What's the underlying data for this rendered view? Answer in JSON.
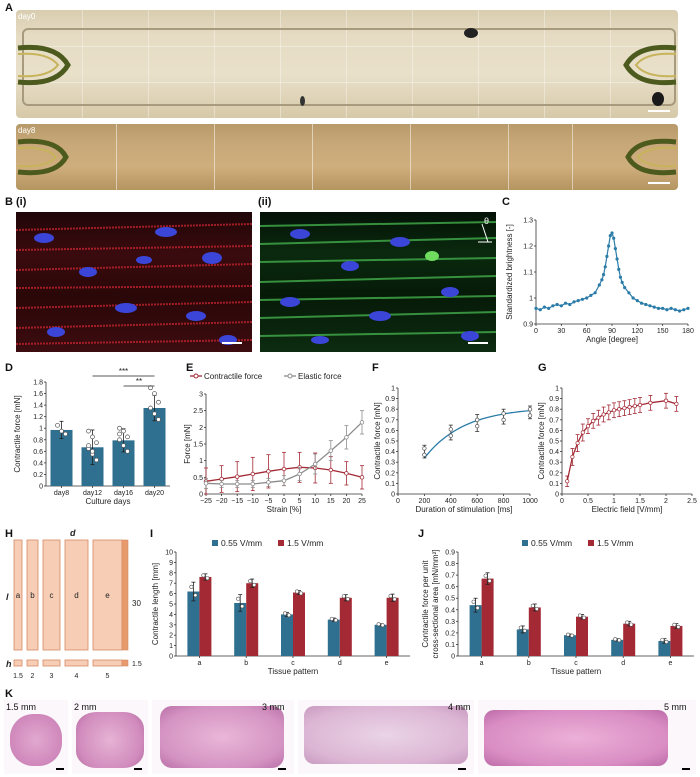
{
  "panel_labels": {
    "A": "A",
    "B": "B",
    "Bi": "(i)",
    "Bii": "(ii)",
    "C": "C",
    "D": "D",
    "E": "E",
    "F": "F",
    "G": "G",
    "H": "H",
    "I": "I",
    "J": "J",
    "K": "K"
  },
  "panel_a": {
    "day0": "day0",
    "day8": "day8"
  },
  "panel_b": {
    "theta": "θ"
  },
  "panel_h": {
    "d": "d",
    "l": "l",
    "h": "h",
    "l_value": "30",
    "h_value": "1.5",
    "widths": [
      "1.5",
      "2",
      "3",
      "4",
      "5"
    ],
    "patterns": [
      "a",
      "b",
      "c",
      "d",
      "e"
    ]
  },
  "panel_k": {
    "labels": [
      "1.5 mm",
      "2 mm",
      "3 mm",
      "4 mm",
      "5 mm"
    ]
  },
  "colors": {
    "teal": "#2f6f8f",
    "red": "#a32a35",
    "gray": "#8c8c8c",
    "blue_line": "#2b7ca8"
  },
  "chart_data": [
    {
      "id": "C",
      "type": "scatter",
      "title": "",
      "xlabel": "Angle [degree]",
      "ylabel": "Standardized brightness [-]",
      "xlim": [
        0,
        180
      ],
      "ylim": [
        0.9,
        1.3
      ],
      "xticks": [
        "0",
        "30",
        "60",
        "90",
        "120",
        "150",
        "180"
      ],
      "yticks": [
        "0.9",
        "1",
        "1.1",
        "1.2",
        "1.3"
      ],
      "x": [
        0,
        5,
        10,
        15,
        20,
        25,
        30,
        35,
        40,
        45,
        50,
        55,
        60,
        65,
        70,
        75,
        78,
        80,
        82,
        84,
        86,
        88,
        90,
        92,
        94,
        96,
        98,
        100,
        102,
        105,
        110,
        115,
        120,
        125,
        130,
        135,
        140,
        145,
        150,
        155,
        160,
        165,
        170,
        175,
        180
      ],
      "y": [
        0.96,
        0.955,
        0.965,
        0.96,
        0.97,
        0.975,
        0.97,
        0.98,
        0.975,
        0.985,
        0.99,
        0.995,
        1.0,
        1.01,
        1.02,
        1.05,
        1.07,
        1.09,
        1.12,
        1.16,
        1.2,
        1.24,
        1.25,
        1.23,
        1.19,
        1.15,
        1.11,
        1.08,
        1.06,
        1.04,
        1.02,
        1.0,
        0.99,
        0.98,
        0.975,
        0.97,
        0.965,
        0.96,
        0.96,
        0.955,
        0.96,
        0.955,
        0.95,
        0.955,
        0.96
      ]
    },
    {
      "id": "D",
      "type": "bar",
      "xlabel": "Culture days",
      "ylabel": "Contractile force [mN]",
      "ylim": [
        0,
        1.8
      ],
      "yticks": [
        "0",
        "0.2",
        "0.4",
        "0.6",
        "0.8",
        "1",
        "1.2",
        "1.4",
        "1.6",
        "1.8"
      ],
      "categories": [
        "day8",
        "day12",
        "day16",
        "day20"
      ],
      "values": [
        0.97,
        0.67,
        0.79,
        1.35
      ],
      "errors": [
        0.15,
        0.3,
        0.2,
        0.22
      ],
      "points": [
        [
          1.05,
          0.95,
          0.9
        ],
        [
          0.95,
          0.85,
          0.75,
          0.65,
          0.55,
          0.45,
          0.7,
          0.6
        ],
        [
          1.0,
          0.95,
          0.85,
          0.8,
          0.7,
          0.6,
          0.9
        ],
        [
          1.7,
          1.6,
          1.45,
          1.35,
          1.25,
          1.15
        ]
      ],
      "significance": [
        "***",
        "**"
      ]
    },
    {
      "id": "E",
      "type": "line",
      "xlabel": "Strain [%]",
      "ylabel": "Force [mN]",
      "xlim": [
        -25,
        25
      ],
      "ylim": [
        0,
        3
      ],
      "xticks": [
        "−25",
        "−20",
        "−15",
        "−10",
        "−5",
        "0",
        "5",
        "10",
        "15",
        "20",
        "25"
      ],
      "yticks": [
        "0",
        "0.5",
        "1",
        "1.5",
        "2",
        "2.5",
        "3"
      ],
      "x": [
        -25,
        -20,
        -15,
        -10,
        -5,
        0,
        5,
        10,
        15,
        20,
        25
      ],
      "series": [
        {
          "name": "Contractile force",
          "values": [
            0.38,
            0.45,
            0.52,
            0.6,
            0.68,
            0.75,
            0.8,
            0.78,
            0.72,
            0.62,
            0.5
          ],
          "errors": [
            0.4,
            0.4,
            0.45,
            0.5,
            0.5,
            0.5,
            0.45,
            0.45,
            0.4,
            0.35,
            0.35
          ]
        },
        {
          "name": "Elastic force",
          "values": [
            0.32,
            0.3,
            0.3,
            0.3,
            0.35,
            0.4,
            0.6,
            0.9,
            1.3,
            1.7,
            2.15
          ],
          "errors": [
            0.15,
            0.1,
            0.1,
            0.1,
            0.12,
            0.15,
            0.2,
            0.3,
            0.3,
            0.35,
            0.35
          ]
        }
      ]
    },
    {
      "id": "F",
      "type": "line",
      "xlabel": "Duration of stimulation [ms]",
      "ylabel": "Contractile force [mN]",
      "xlim": [
        0,
        1000
      ],
      "ylim": [
        0,
        1
      ],
      "xticks": [
        "0",
        "200",
        "400",
        "600",
        "800",
        "1000"
      ],
      "yticks": [
        "0",
        "0.1",
        "0.2",
        "0.3",
        "0.4",
        "0.5",
        "0.6",
        "0.7",
        "0.8",
        "0.9",
        "1"
      ],
      "x": [
        200,
        400,
        600,
        800,
        1000
      ],
      "values": [
        0.4,
        0.58,
        0.67,
        0.73,
        0.77
      ],
      "errors": [
        0.06,
        0.07,
        0.08,
        0.07,
        0.06
      ]
    },
    {
      "id": "G",
      "type": "line",
      "xlabel": "Electric field [V/mm]",
      "ylabel": "Contractile force [mN]",
      "xlim": [
        0,
        2.5
      ],
      "ylim": [
        0,
        1
      ],
      "xticks": [
        "0",
        "0.5",
        "1",
        "1.5",
        "2",
        "2.5"
      ],
      "yticks": [
        "0",
        "0.1",
        "0.2",
        "0.3",
        "0.4",
        "0.5",
        "0.6",
        "0.7",
        "0.8",
        "0.9",
        "1"
      ],
      "x": [
        0.1,
        0.2,
        0.3,
        0.4,
        0.5,
        0.6,
        0.7,
        0.8,
        0.9,
        1.0,
        1.1,
        1.2,
        1.3,
        1.4,
        1.5,
        1.7,
        2.0,
        2.2
      ],
      "values": [
        0.12,
        0.35,
        0.48,
        0.58,
        0.64,
        0.69,
        0.72,
        0.75,
        0.77,
        0.79,
        0.8,
        0.81,
        0.82,
        0.83,
        0.84,
        0.86,
        0.88,
        0.85
      ],
      "errors": [
        0.05,
        0.08,
        0.08,
        0.08,
        0.07,
        0.07,
        0.07,
        0.07,
        0.07,
        0.07,
        0.07,
        0.07,
        0.07,
        0.07,
        0.07,
        0.07,
        0.07,
        0.07
      ]
    },
    {
      "id": "I",
      "type": "bar",
      "xlabel": "Tissue pattern",
      "ylabel": "Contractile length [mm]",
      "ylim": [
        0,
        10
      ],
      "yticks": [
        "0",
        "1",
        "2",
        "3",
        "4",
        "5",
        "6",
        "7",
        "8",
        "9",
        "10"
      ],
      "categories": [
        "a",
        "b",
        "c",
        "d",
        "e"
      ],
      "series": [
        {
          "name": "0.55 V/mm",
          "values": [
            6.2,
            5.1,
            4.0,
            3.5,
            3.0
          ],
          "errors": [
            0.9,
            0.8,
            0.2,
            0.15,
            0.1
          ]
        },
        {
          "name": "1.5 V/mm",
          "values": [
            7.6,
            7.0,
            6.1,
            5.6,
            5.6
          ],
          "errors": [
            0.3,
            0.4,
            0.2,
            0.3,
            0.35
          ]
        }
      ]
    },
    {
      "id": "J",
      "type": "bar",
      "xlabel": "Tissue pattern",
      "ylabel": "Contractile force per unit cross-sectional area [mN/mm²]",
      "ylim": [
        0,
        0.9
      ],
      "yticks": [
        "0",
        "0.1",
        "0.2",
        "0.3",
        "0.4",
        "0.5",
        "0.6",
        "0.7",
        "0.8",
        "0.9"
      ],
      "categories": [
        "a",
        "b",
        "c",
        "d",
        "e"
      ],
      "series": [
        {
          "name": "0.55 V/mm",
          "values": [
            0.44,
            0.23,
            0.18,
            0.14,
            0.13
          ],
          "errors": [
            0.06,
            0.03,
            0.01,
            0.01,
            0.02
          ]
        },
        {
          "name": "1.5 V/mm",
          "values": [
            0.67,
            0.42,
            0.34,
            0.28,
            0.26
          ],
          "errors": [
            0.05,
            0.03,
            0.02,
            0.02,
            0.02
          ]
        }
      ]
    }
  ]
}
